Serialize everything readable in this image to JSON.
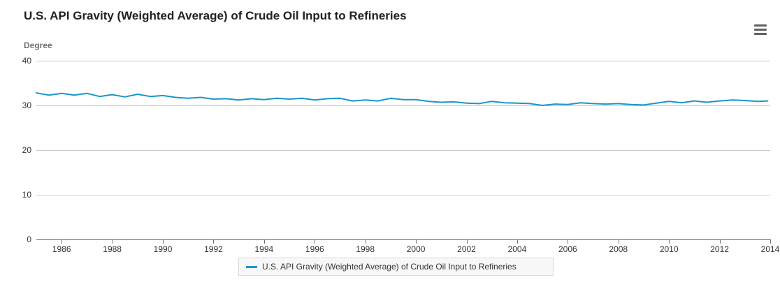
{
  "chart_data": {
    "type": "line",
    "title": "U.S. API Gravity (Weighted Average) of Crude Oil Input to Refineries",
    "ylabel": "Degree",
    "xlabel": "",
    "ylim": [
      0,
      40
    ],
    "yticks": [
      "0",
      "10",
      "20",
      "30",
      "40"
    ],
    "xlim": [
      1985,
      2014
    ],
    "xticks": [
      "1986",
      "1988",
      "1990",
      "1992",
      "1994",
      "1996",
      "1998",
      "2000",
      "2002",
      "2004",
      "2006",
      "2008",
      "2010",
      "2012",
      "2014"
    ],
    "grid": true,
    "legend_position": "bottom",
    "series": [
      {
        "name": "U.S. API Gravity (Weighted Average) of Crude Oil Input to Refineries",
        "color": "#1a96c9",
        "x": [
          1985.0,
          1985.5,
          1986.0,
          1986.5,
          1987.0,
          1987.5,
          1988.0,
          1988.5,
          1989.0,
          1989.5,
          1990.0,
          1990.5,
          1991.0,
          1991.5,
          1992.0,
          1992.5,
          1993.0,
          1993.5,
          1994.0,
          1994.5,
          1995.0,
          1995.5,
          1996.0,
          1996.5,
          1997.0,
          1997.5,
          1998.0,
          1998.5,
          1999.0,
          1999.5,
          2000.0,
          2000.5,
          2001.0,
          2001.5,
          2002.0,
          2002.5,
          2003.0,
          2003.5,
          2004.0,
          2004.5,
          2005.0,
          2005.5,
          2006.0,
          2006.5,
          2007.0,
          2007.5,
          2008.0,
          2008.5,
          2009.0,
          2009.5,
          2010.0,
          2010.5,
          2011.0,
          2011.5,
          2012.0,
          2012.5,
          2013.0,
          2013.5,
          2013.9
        ],
        "values": [
          32.8,
          32.3,
          32.7,
          32.3,
          32.7,
          32.0,
          32.4,
          31.9,
          32.5,
          32.0,
          32.2,
          31.8,
          31.6,
          31.8,
          31.4,
          31.5,
          31.2,
          31.5,
          31.3,
          31.6,
          31.4,
          31.6,
          31.2,
          31.5,
          31.6,
          31.0,
          31.2,
          31.0,
          31.6,
          31.3,
          31.3,
          30.9,
          30.7,
          30.8,
          30.5,
          30.4,
          30.9,
          30.6,
          30.5,
          30.4,
          30.0,
          30.3,
          30.2,
          30.6,
          30.4,
          30.3,
          30.4,
          30.2,
          30.1,
          30.5,
          30.9,
          30.6,
          31.0,
          30.7,
          31.0,
          31.2,
          31.1,
          30.9,
          31.0
        ]
      }
    ]
  }
}
